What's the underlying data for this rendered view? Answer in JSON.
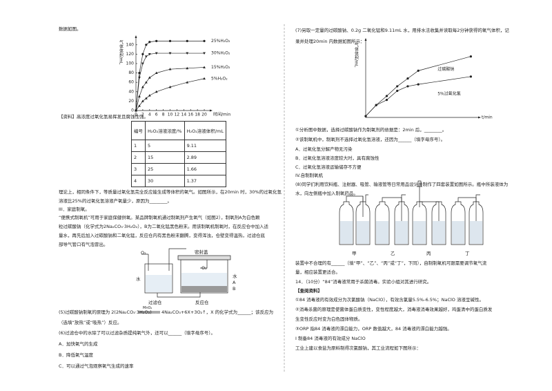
{
  "left": {
    "lines": [
      "数据如图。",
      "【资料】高浓度过氧化氢易挥发且腐蚀性强。",
      "理论上，相同条件下，等质量过氧化氢完全反应能生成等体积的氧气。如图所示，在20min 时，30%的过氧化氢",
      "溶液比25%的过氧化氢溶液产氧量少，原因为________。",
      "III．家庭制氧。",
      "“便携式制氧机”可用于家庭保健供氧。某品牌制氧机通过制氧剂产生氧气（如图2），制氧剂A为白色颗",
      "粒过碳酸钠（化学式为2Na₂CO₃·3H₂O₂），B为二氧化锰黑色粉末。用该制氧机制氧时，在反应仓中加入适",
      "量水，再先后加入过碳酸钠和二氧化锰，反应仓内有黑色粉末翻腾，变得浑浊，仓壁变得温热，过滤仓底",
      "部导气管口有气泡冒出。",
      "（选填“放热”或“吸热”）反应。",
      "(6)过滤仓中的水除了可以过滤杂质提纯氧气外，还可以______（填字母序号）。",
      "A．加快氧气的生成",
      "B．降低氧气温度",
      "C．可以通过气泡观察氧气生成的速率"
    ],
    "reaction": {
      "before": "(5)过碳酸钠制氧的原理为 2(2Na₂CO₃·3H₂O₂)",
      "catalyst": "MnO₂",
      "after": "4Na₂CO₃+6X+3O₂↑，X 的化学式为______；该反应为"
    },
    "table": {
      "header": [
        "编号",
        "H₂O₂溶液浓度/%",
        "H₂O₂溶液体积/mL"
      ],
      "rows": [
        [
          1,
          5,
          9.11
        ],
        [
          2,
          15,
          2.89
        ],
        [
          3,
          25,
          1.66
        ],
        [
          4,
          30,
          1.37
        ]
      ]
    },
    "device_labels": [
      "O₂",
      "密封盖",
      "O₂",
      "水",
      "水",
      "A",
      "B",
      "过滤仓",
      "反应仓"
    ]
  },
  "figure1": {
    "y_label": "气体体积/mL",
    "x_label": "时间/min",
    "xlim": [
      0,
      21
    ],
    "ylim": [
      0,
      150
    ],
    "xticks": [
      0,
      2,
      4,
      6,
      8,
      10,
      12,
      14,
      16,
      18,
      20
    ],
    "yticks": [
      0,
      20,
      40,
      60,
      80,
      100,
      120,
      140
    ],
    "x": [
      0,
      1,
      2,
      3,
      4,
      6,
      10,
      15,
      20
    ],
    "series": [
      {
        "name": "25%H₂O₂",
        "marker": "circle",
        "values": [
          0,
          80,
          120,
          140,
          146,
          148,
          148,
          148,
          148
        ]
      },
      {
        "name": "30%H₂O₂",
        "marker": "triangle-down",
        "values": [
          0,
          70,
          100,
          115,
          120,
          122,
          122,
          122,
          122
        ]
      },
      {
        "name": "15%H₂O₂",
        "marker": "triangle",
        "values": [
          0,
          30,
          50,
          60,
          70,
          80,
          88,
          90,
          92
        ]
      },
      {
        "name": "5%H₂O₂",
        "marker": "triangle",
        "values": [
          0,
          10,
          20,
          26,
          32,
          40,
          50,
          60,
          68
        ]
      }
    ]
  },
  "right": {
    "lines": [
      "(7)另取一定量的过碳酸钠、0.2g 二氧化锰和9.11mL 水，用排水法收集并读取每2分钟获得的氧气体积，记",
      "录并处理20min 内数据如图所示：",
      "①分析图中数据，选择过碳酸钠作为制氧剂的依据是：2min 后，________。",
      "②该制氧机中，制氧剂不选择过氧化氢溶液，还因为______（填字母序号）。",
      "A．过氧化氢分解产物无污染",
      "B．过氧化氢溶液浓度较大时，具有腐蚀性",
      "C．过氧化氢溶液运输储存不方便",
      "IV.自制制氧机",
      "(8)同学们利用饮料瓶、注射器、吸管、输液管等日常用品设计并制作了四套装置如图所示。瓶中所装液体为",
      "水，向左侧瓶中加入制氧药品。",
      "装置中不合理的有______（填“甲”、“乙”、“丙”或“丁”，下同），自制制氧机可跟需要调节氧气流",
      "量，相应装置更适合。",
      "14．（10分）“84”消毒液常用于杀菌消毒。实验小组对其进行研究。",
      "【查阅资料】",
      "①84 消毒液的有效成分为次氯酸钠（NaClO），有效含氯量5.5%-6.5%；NaClO 溶液呈碱性。",
      "②消毒杀菌的原理是使菌体蛋白质变性，变性程度越大，消毒液消毒效果越好，鸡蛋清中的蛋白质发",
      "生变性反应时变为白色固体物质。",
      "③ORP 指84 消毒液的漂白能力，ORP 数值越大，84 消毒液的漂白能力越强。",
      "I 制备84 消毒液的有效成分 NaClO",
      "工业上建以食盐为原料制得次氯酸钠，其工业流程如下图所示："
    ],
    "bottle_labels": [
      "甲",
      "乙",
      "丙",
      "丁"
    ]
  },
  "figure2": {
    "y_label": "气体体积/mL",
    "x_label": "t/min",
    "xlim": [
      0,
      21
    ],
    "ylim": [
      0,
      115
    ],
    "x": [
      0,
      2,
      4,
      6,
      8,
      10,
      20
    ],
    "series": [
      {
        "name": "过碳酸钠",
        "marker": "circle",
        "values": [
          2,
          19,
          33,
          48,
          60,
          72,
          94
        ]
      },
      {
        "name": "5%过氧化氢",
        "marker": "circle",
        "values": [
          2,
          19,
          27,
          41,
          48,
          51,
          63
        ]
      }
    ]
  }
}
